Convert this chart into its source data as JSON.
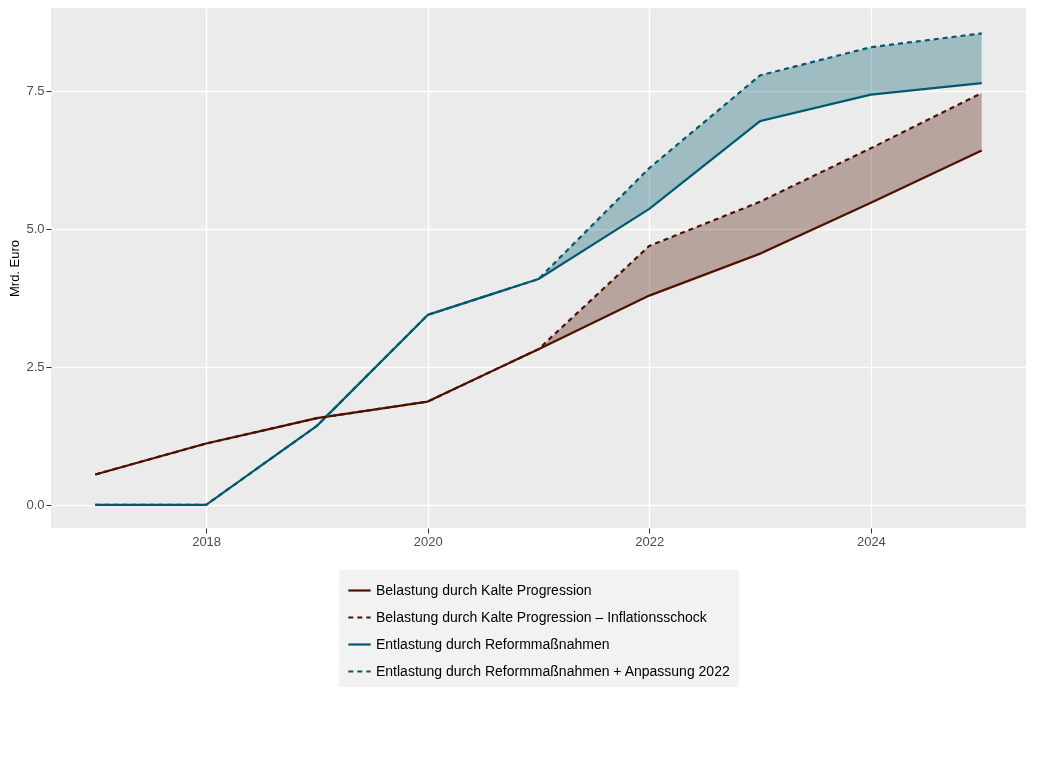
{
  "chart_data": {
    "type": "line",
    "ylabel": "Mrd. Euro",
    "x": [
      2017,
      2018,
      2019,
      2020,
      2021,
      2022,
      2023,
      2024,
      2025
    ],
    "xlim": [
      2016.6,
      2025.4
    ],
    "xticks": [
      2018,
      2020,
      2022,
      2024
    ],
    "ylim": [
      -0.42,
      9.0
    ],
    "yticks": [
      {
        "value": 0,
        "label": "0.0"
      },
      {
        "value": 2.5,
        "label": "2.5"
      },
      {
        "value": 5,
        "label": "5.0"
      },
      {
        "value": 7.5,
        "label": "7.5"
      }
    ],
    "grid": true,
    "legend": "bottom",
    "marker": "none",
    "series": [
      {
        "name": "Belastung durch Kalte Progression",
        "color": "#4d1100",
        "line_style": "solid",
        "values": [
          0.55,
          1.11,
          1.57,
          1.87,
          2.82,
          3.79,
          4.55,
          5.47,
          6.42
        ]
      },
      {
        "name": "Belastung durch Kalte Progression – Inflationsschock",
        "color": "#4d1100",
        "line_style": "dashed",
        "values": [
          0.55,
          1.11,
          1.57,
          1.87,
          2.82,
          4.69,
          5.49,
          6.46,
          7.46
        ],
        "lower": [
          null,
          null,
          null,
          null,
          2.82,
          3.79,
          4.55,
          5.47,
          6.42
        ],
        "upper": [
          null,
          null,
          null,
          null,
          2.82,
          4.69,
          5.49,
          6.46,
          7.46
        ]
      },
      {
        "name": "Entlastung durch Reformmaßnahmen",
        "color": "#005a6e",
        "line_style": "solid",
        "values": [
          0,
          0,
          1.43,
          3.44,
          4.09,
          5.36,
          6.95,
          7.43,
          7.64
        ]
      },
      {
        "name": "Entlastung durch Reformmaßnahmen + Anpassung 2022",
        "color": "#005a6e",
        "line_style": "dashed",
        "values": [
          0,
          0,
          1.43,
          3.44,
          4.09,
          6.1,
          7.78,
          8.29,
          8.54
        ],
        "lower": [
          null,
          null,
          null,
          null,
          4.09,
          5.36,
          6.95,
          7.43,
          7.64
        ],
        "upper": [
          null,
          null,
          null,
          null,
          4.09,
          6.1,
          7.78,
          8.29,
          8.54
        ]
      }
    ]
  }
}
